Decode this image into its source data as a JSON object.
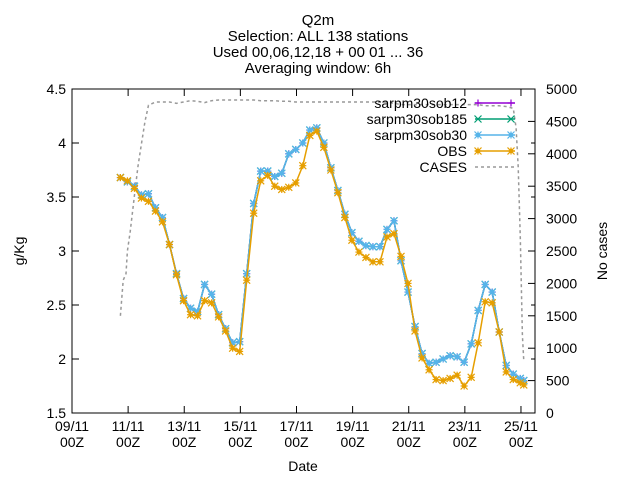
{
  "chart_data": {
    "type": "line",
    "title_lines": [
      "Q2m",
      "Selection: ALL    138 stations",
      "Used 00,06,12,18 + 00 01 ... 36",
      "Averaging window:  6h"
    ],
    "xlabel": "Date",
    "ylabel": "g/Kg",
    "y2label": "No cases",
    "xlim": [
      0,
      66
    ],
    "ylim": [
      1.5,
      4.5
    ],
    "y2lim": [
      0,
      5000
    ],
    "x_ticks": [
      {
        "pos": 0,
        "l1": "09/11",
        "l2": "00Z"
      },
      {
        "pos": 8,
        "l1": "11/11",
        "l2": "00Z"
      },
      {
        "pos": 16,
        "l1": "13/11",
        "l2": "00Z"
      },
      {
        "pos": 24,
        "l1": "15/11",
        "l2": "00Z"
      },
      {
        "pos": 32,
        "l1": "17/11",
        "l2": "00Z"
      },
      {
        "pos": 40,
        "l1": "19/11",
        "l2": "00Z"
      },
      {
        "pos": 48,
        "l1": "21/11",
        "l2": "00Z"
      },
      {
        "pos": 56,
        "l1": "23/11",
        "l2": "00Z"
      },
      {
        "pos": 64,
        "l1": "25/11",
        "l2": "00Z"
      }
    ],
    "y_ticks": [
      "1.5",
      "2",
      "2.5",
      "3",
      "3.5",
      "4",
      "4.5"
    ],
    "y2_ticks": [
      "0",
      "500",
      "1000",
      "1500",
      "2000",
      "2500",
      "3000",
      "3500",
      "4000",
      "4500",
      "5000"
    ],
    "grid": false,
    "legend_position": "top-right",
    "x": [
      6.9,
      7.9,
      8.9,
      9.9,
      10.9,
      11.9,
      12.9,
      13.9,
      14.9,
      15.9,
      16.9,
      17.9,
      18.9,
      19.9,
      20.9,
      21.9,
      22.9,
      23.9,
      24.9,
      25.9,
      26.9,
      27.9,
      28.9,
      29.9,
      30.9,
      31.9,
      32.9,
      33.9,
      34.9,
      35.9,
      36.9,
      37.9,
      38.9,
      39.9,
      40.9,
      41.9,
      42.9,
      43.9,
      44.9,
      45.9,
      46.9,
      47.9,
      48.9,
      49.9,
      50.9,
      51.9,
      52.9,
      53.9,
      54.9,
      55.9,
      56.9,
      57.9,
      58.9,
      59.9,
      60.9,
      61.9,
      62.9,
      63.9,
      64.4
    ],
    "series": [
      {
        "name": "sar_pm30_sob12",
        "legend_label": "sarpm30sob12",
        "color": "#9400d3",
        "marker": "plus",
        "values": [
          3.68,
          3.64,
          3.6,
          3.52,
          3.53,
          3.4,
          3.31,
          3.06,
          2.79,
          2.56,
          2.47,
          2.44,
          2.69,
          2.6,
          2.41,
          2.28,
          2.15,
          2.16,
          2.79,
          3.44,
          3.74,
          3.74,
          3.69,
          3.72,
          3.9,
          3.94,
          4.0,
          4.12,
          4.14,
          4.0,
          3.77,
          3.56,
          3.34,
          3.17,
          3.09,
          3.05,
          3.04,
          3.04,
          3.2,
          3.28,
          2.91,
          2.62,
          2.3,
          2.05,
          1.96,
          1.97,
          2.0,
          2.03,
          2.02,
          1.97,
          2.14,
          2.45,
          2.69,
          2.62,
          2.25,
          1.94,
          1.86,
          1.82,
          1.8
        ]
      },
      {
        "name": "sar_pm30_sob185",
        "legend_label": "sarpm30sob185",
        "color": "#009e73",
        "marker": "cross",
        "values": [
          3.68,
          3.64,
          3.6,
          3.52,
          3.53,
          3.4,
          3.31,
          3.06,
          2.79,
          2.56,
          2.47,
          2.44,
          2.69,
          2.6,
          2.41,
          2.28,
          2.15,
          2.16,
          2.79,
          3.44,
          3.74,
          3.74,
          3.69,
          3.72,
          3.9,
          3.94,
          4.0,
          4.12,
          4.14,
          4.0,
          3.77,
          3.56,
          3.34,
          3.17,
          3.09,
          3.05,
          3.04,
          3.04,
          3.2,
          3.28,
          2.91,
          2.62,
          2.3,
          2.05,
          1.96,
          1.97,
          2.0,
          2.03,
          2.02,
          1.97,
          2.14,
          2.45,
          2.69,
          2.62,
          2.25,
          1.94,
          1.86,
          1.82,
          1.8
        ]
      },
      {
        "name": "sar_pm30_sob30",
        "legend_label": "sarpm30sob30",
        "color": "#56b4e9",
        "marker": "asterisk",
        "values": [
          3.68,
          3.64,
          3.6,
          3.52,
          3.53,
          3.4,
          3.31,
          3.06,
          2.79,
          2.56,
          2.47,
          2.44,
          2.69,
          2.6,
          2.41,
          2.28,
          2.15,
          2.16,
          2.79,
          3.44,
          3.74,
          3.74,
          3.69,
          3.72,
          3.9,
          3.94,
          4.0,
          4.12,
          4.14,
          4.0,
          3.77,
          3.56,
          3.34,
          3.17,
          3.09,
          3.05,
          3.04,
          3.04,
          3.2,
          3.28,
          2.91,
          2.62,
          2.3,
          2.05,
          1.96,
          1.97,
          2.0,
          2.03,
          2.02,
          1.97,
          2.14,
          2.45,
          2.69,
          2.62,
          2.25,
          1.94,
          1.86,
          1.82,
          1.8
        ]
      },
      {
        "name": "OBS",
        "legend_label": "OBS",
        "color": "#e69f00",
        "marker": "star",
        "values": [
          3.68,
          3.65,
          3.58,
          3.49,
          3.46,
          3.37,
          3.27,
          3.06,
          2.78,
          2.54,
          2.41,
          2.4,
          2.54,
          2.52,
          2.39,
          2.26,
          2.1,
          2.07,
          2.73,
          3.35,
          3.65,
          3.7,
          3.6,
          3.57,
          3.59,
          3.63,
          3.79,
          4.07,
          4.11,
          3.96,
          3.75,
          3.54,
          3.31,
          3.1,
          2.99,
          2.94,
          2.9,
          2.9,
          3.13,
          3.16,
          2.95,
          2.7,
          2.26,
          2.01,
          1.9,
          1.81,
          1.8,
          1.82,
          1.85,
          1.75,
          1.83,
          2.15,
          2.53,
          2.52,
          2.25,
          1.88,
          1.81,
          1.78,
          1.76
        ]
      }
    ],
    "cases": {
      "name": "CASES",
      "legend_label": "CASES",
      "color": "#999999",
      "axis": "y2",
      "x": [
        6.9,
        7.3,
        7.7,
        7.9,
        8.3,
        8.9,
        9.4,
        9.9,
        10.4,
        10.9,
        11.9,
        12.9,
        13.9,
        14.9,
        15.9,
        16.9,
        17.9,
        18.9,
        19.9,
        20.9,
        21.9,
        22.9,
        23.9,
        24.9,
        25.9,
        26.9,
        27.9,
        28.9,
        29.9,
        30.9,
        31.9,
        32.9,
        33.9,
        34.9,
        35.9,
        36.9,
        37.9,
        38.9,
        39.9,
        40.9,
        41.9,
        42.9,
        43.9,
        44.9,
        45.9,
        46.9,
        47.9,
        48.9,
        49.9,
        50.9,
        51.9,
        52.9,
        53.9,
        54.9,
        55.9,
        56.9,
        57.9,
        58.9,
        59.9,
        60.9,
        61.9,
        62.9,
        63.3,
        63.6,
        63.9,
        64.2,
        64.4
      ],
      "values": [
        1500,
        2050,
        2150,
        2500,
        2800,
        3350,
        3800,
        4150,
        4500,
        4750,
        4800,
        4800,
        4800,
        4780,
        4800,
        4820,
        4810,
        4790,
        4820,
        4830,
        4830,
        4830,
        4830,
        4830,
        4830,
        4820,
        4820,
        4820,
        4810,
        4810,
        4800,
        4800,
        4800,
        4800,
        4800,
        4800,
        4800,
        4800,
        4800,
        4800,
        4800,
        4800,
        4800,
        4800,
        4780,
        4760,
        4760,
        4760,
        4760,
        4760,
        4760,
        4760,
        4760,
        4760,
        4760,
        4760,
        4760,
        4740,
        4740,
        4740,
        4730,
        4700,
        4400,
        3800,
        2700,
        1200,
        800
      ]
    }
  }
}
